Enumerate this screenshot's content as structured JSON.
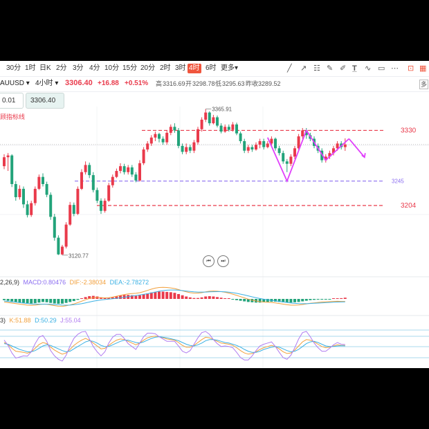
{
  "timeframes": [
    {
      "label": "30分",
      "active": false
    },
    {
      "label": "1时",
      "active": false
    },
    {
      "label": "日K",
      "active": false
    },
    {
      "label": "2分",
      "active": false
    },
    {
      "label": "3分",
      "active": false
    },
    {
      "label": "4分",
      "active": false
    },
    {
      "label": "10分",
      "active": false
    },
    {
      "label": "15分",
      "active": false
    },
    {
      "label": "20分",
      "active": false
    },
    {
      "label": "2时",
      "active": false
    },
    {
      "label": "3时",
      "active": false
    },
    {
      "label": "4时",
      "active": true
    },
    {
      "label": "6时",
      "active": false
    },
    {
      "label": "更多▾",
      "active": false
    }
  ],
  "tools": [
    "trend-line-icon",
    "ray-icon",
    "fib-icon",
    "pen-icon",
    "text-icon",
    "wave-icon",
    "rect-icon",
    "layout-icon",
    "theme-icon"
  ],
  "quote": {
    "symbol": "AUUSD ▾",
    "interval": "4小时 ▾",
    "price": "3306.40",
    "change": "+16.88",
    "change_pct": "+0.51%",
    "high_label": "高",
    "high": "3316.69",
    "open_label": "开",
    "open": "3298.78",
    "low_label": "低",
    "low": "3295.63",
    "prev_label": "昨收",
    "prev": "3289.52",
    "corner": "多"
  },
  "order": {
    "lots": "0.01",
    "price": "3306.40"
  },
  "indicator_link": "顾指标线",
  "macd_label": {
    "head": "2,26,9)",
    "macd": "MACD:0.80476",
    "dif": "DIF:-2.38034",
    "dea": "DEA:-2.78272"
  },
  "kdj_label": {
    "head": "3)",
    "k": "K:51.88",
    "d": "D:50.29",
    "j": "J:55.04"
  },
  "chart_data": {
    "type": "candlestick",
    "annotations": {
      "high": "3365.91",
      "low": "3120.77"
    },
    "levels": [
      {
        "value": 3330,
        "label": "3330",
        "color": "#e93a4b"
      },
      {
        "value": 3245,
        "label": "3245",
        "color": "#8a6cf0"
      },
      {
        "value": 3204,
        "label": "3204",
        "color": "#e93a4b"
      }
    ],
    "candles": [
      [
        3270,
        3285,
        3290,
        3265
      ],
      [
        3285,
        3288,
        3292,
        3262
      ],
      [
        3288,
        3240,
        3290,
        3235
      ],
      [
        3240,
        3218,
        3245,
        3212
      ],
      [
        3218,
        3232,
        3238,
        3214
      ],
      [
        3232,
        3206,
        3236,
        3200
      ],
      [
        3206,
        3188,
        3212,
        3184
      ],
      [
        3188,
        3208,
        3212,
        3185
      ],
      [
        3208,
        3232,
        3236,
        3204
      ],
      [
        3232,
        3252,
        3256,
        3230
      ],
      [
        3252,
        3240,
        3258,
        3236
      ],
      [
        3240,
        3222,
        3244,
        3218
      ],
      [
        3222,
        3185,
        3226,
        3180
      ],
      [
        3185,
        3150,
        3190,
        3145
      ],
      [
        3150,
        3122,
        3154,
        3121
      ],
      [
        3122,
        3135,
        3138,
        3120.77
      ],
      [
        3135,
        3172,
        3176,
        3132
      ],
      [
        3172,
        3205,
        3210,
        3170
      ],
      [
        3205,
        3190,
        3209,
        3186
      ],
      [
        3190,
        3232,
        3236,
        3188
      ],
      [
        3232,
        3260,
        3265,
        3230
      ],
      [
        3260,
        3272,
        3278,
        3256
      ],
      [
        3272,
        3255,
        3276,
        3250
      ],
      [
        3255,
        3230,
        3260,
        3226
      ],
      [
        3230,
        3212,
        3234,
        3208
      ],
      [
        3212,
        3195,
        3216,
        3190
      ],
      [
        3195,
        3212,
        3216,
        3192
      ],
      [
        3212,
        3238,
        3242,
        3210
      ],
      [
        3238,
        3252,
        3256,
        3234
      ],
      [
        3252,
        3262,
        3266,
        3250
      ],
      [
        3262,
        3270,
        3275,
        3258
      ],
      [
        3270,
        3260,
        3274,
        3256
      ],
      [
        3260,
        3268,
        3272,
        3256
      ],
      [
        3268,
        3256,
        3272,
        3252
      ],
      [
        3256,
        3246,
        3260,
        3243
      ],
      [
        3246,
        3275,
        3280,
        3244
      ],
      [
        3275,
        3298,
        3302,
        3272
      ],
      [
        3298,
        3308,
        3312,
        3294
      ],
      [
        3308,
        3318,
        3322,
        3304
      ],
      [
        3318,
        3324,
        3328,
        3312
      ],
      [
        3324,
        3316,
        3326,
        3310
      ],
      [
        3316,
        3310,
        3320,
        3306
      ],
      [
        3310,
        3326,
        3330,
        3306
      ],
      [
        3326,
        3336,
        3340,
        3322
      ],
      [
        3336,
        3330,
        3342,
        3326
      ],
      [
        3330,
        3304,
        3334,
        3300
      ],
      [
        3304,
        3294,
        3308,
        3290
      ],
      [
        3294,
        3302,
        3308,
        3290
      ],
      [
        3302,
        3296,
        3306,
        3292
      ],
      [
        3296,
        3310,
        3314,
        3292
      ],
      [
        3310,
        3332,
        3336,
        3306
      ],
      [
        3332,
        3348,
        3352,
        3328
      ],
      [
        3348,
        3360,
        3365.91,
        3344
      ],
      [
        3360,
        3342,
        3362,
        3338
      ],
      [
        3342,
        3352,
        3356,
        3340
      ],
      [
        3352,
        3338,
        3355,
        3335
      ],
      [
        3338,
        3328,
        3342,
        3325
      ],
      [
        3328,
        3336,
        3340,
        3326
      ],
      [
        3336,
        3331,
        3340,
        3328
      ],
      [
        3331,
        3340,
        3344,
        3328
      ],
      [
        3340,
        3325,
        3343,
        3322
      ],
      [
        3325,
        3312,
        3328,
        3308
      ],
      [
        3312,
        3296,
        3316,
        3292
      ],
      [
        3296,
        3302,
        3306,
        3292
      ],
      [
        3302,
        3298,
        3306,
        3294
      ],
      [
        3298,
        3306,
        3310,
        3296
      ],
      [
        3306,
        3312,
        3316,
        3300
      ],
      [
        3312,
        3302,
        3316,
        3298
      ],
      [
        3302,
        3308,
        3312,
        3300
      ],
      [
        3308,
        3316,
        3320,
        3304
      ],
      [
        3316,
        3300,
        3318,
        3296
      ],
      [
        3300,
        3292,
        3304,
        3288
      ],
      [
        3292,
        3278,
        3296,
        3274
      ],
      [
        3278,
        3274,
        3282,
        3260
      ],
      [
        3274,
        3286,
        3290,
        3270
      ],
      [
        3286,
        3300,
        3304,
        3282
      ],
      [
        3300,
        3320,
        3324,
        3296
      ],
      [
        3320,
        3330,
        3334,
        3316
      ],
      [
        3330,
        3322,
        3334,
        3316
      ],
      [
        3322,
        3316,
        3326,
        3312
      ],
      [
        3316,
        3304,
        3320,
        3300
      ],
      [
        3304,
        3296,
        3308,
        3292
      ],
      [
        3296,
        3280,
        3300,
        3276
      ],
      [
        3280,
        3286,
        3290,
        3276
      ],
      [
        3286,
        3292,
        3296,
        3282
      ],
      [
        3292,
        3300,
        3304,
        3288
      ],
      [
        3300,
        3308,
        3312,
        3296
      ],
      [
        3308,
        3302,
        3312,
        3298
      ],
      [
        3302,
        3306.4,
        3316.69,
        3295.63
      ]
    ],
    "macd_hist": [
      -0.8,
      -1.2,
      -1.6,
      -2.0,
      -2.3,
      -2.6,
      -2.8,
      -3.0,
      -2.8,
      -2.4,
      -2.0,
      -2.2,
      -2.6,
      -3.0,
      -3.2,
      -3.1,
      -2.6,
      -2.0,
      -1.4,
      -0.6,
      0.4,
      1.2,
      1.8,
      2.0,
      1.6,
      1.0,
      0.6,
      0.6,
      1.0,
      1.6,
      2.2,
      2.6,
      2.6,
      2.4,
      2.0,
      2.4,
      3.0,
      3.6,
      4.2,
      4.6,
      4.8,
      4.8,
      4.6,
      4.4,
      4.0,
      3.2,
      2.4,
      1.6,
      1.0,
      0.6,
      0.6,
      1.0,
      1.6,
      1.8,
      1.6,
      1.2,
      0.8,
      0.4,
      0.0,
      -0.4,
      -0.8,
      -1.2,
      -1.6,
      -2.0,
      -2.2,
      -2.4,
      -2.4,
      -2.2,
      -2.0,
      -1.8,
      -1.8,
      -2.0,
      -2.2,
      -2.4,
      -2.4,
      -2.2,
      -2.0,
      -1.6,
      -1.2,
      -0.8,
      -0.6,
      -0.4,
      -0.3,
      -0.2,
      -0.1,
      0.0,
      0.2,
      0.5,
      0.8
    ],
    "dif": [
      -3,
      -3.5,
      -4,
      -4.5,
      -5,
      -5.5,
      -6,
      -6.2,
      -6,
      -5.5,
      -5,
      -5.2,
      -5.8,
      -6.4,
      -7,
      -7.2,
      -6.6,
      -5.8,
      -4.8,
      -3.6,
      -2.2,
      -0.8,
      0.4,
      1.2,
      1.4,
      1.2,
      1.0,
      1.2,
      1.8,
      2.6,
      3.4,
      4.2,
      4.8,
      5.2,
      5.4,
      6.0,
      7.0,
      8.2,
      9.4,
      10.4,
      11.0,
      11.2,
      11.0,
      10.6,
      10.0,
      9.0,
      7.8,
      6.8,
      6.0,
      5.6,
      5.6,
      6.0,
      6.8,
      7.4,
      7.6,
      7.4,
      7.0,
      6.4,
      5.6,
      4.6,
      3.4,
      2.2,
      1.0,
      -0.2,
      -1.2,
      -2.0,
      -2.6,
      -3.0,
      -3.2,
      -3.4,
      -3.8,
      -4.4,
      -5.0,
      -5.6,
      -6.0,
      -6.0,
      -5.8,
      -5.4,
      -4.8,
      -4.2,
      -3.8,
      -3.4,
      -3.0,
      -2.8,
      -2.6,
      -2.4,
      -2.3,
      -2.38,
      -2.38
    ],
    "dea": [
      -2,
      -2.4,
      -2.8,
      -3.2,
      -3.6,
      -4,
      -4.4,
      -4.8,
      -5,
      -5.1,
      -5.1,
      -5.1,
      -5.2,
      -5.4,
      -5.6,
      -5.9,
      -6,
      -5.9,
      -5.6,
      -5.2,
      -4.6,
      -3.8,
      -3.0,
      -2.2,
      -1.6,
      -1.0,
      -0.6,
      -0.2,
      0.2,
      0.6,
      1.1,
      1.6,
      2.2,
      2.8,
      3.3,
      3.8,
      4.4,
      5.0,
      5.8,
      6.6,
      7.4,
      8.0,
      8.4,
      8.6,
      8.6,
      8.4,
      8.0,
      7.6,
      7.2,
      6.8,
      6.6,
      6.6,
      6.6,
      6.8,
      6.9,
      7.0,
      7.0,
      6.8,
      6.5,
      6.0,
      5.4,
      4.6,
      3.8,
      2.9,
      2.0,
      1.2,
      0.4,
      -0.3,
      -0.9,
      -1.4,
      -1.9,
      -2.4,
      -2.9,
      -3.4,
      -3.9,
      -4.3,
      -4.5,
      -4.6,
      -4.6,
      -4.4,
      -4.2,
      -4.0,
      -3.8,
      -3.6,
      -3.4,
      -3.2,
      -3.0,
      -2.9,
      -2.78
    ],
    "k": [
      62,
      55,
      42,
      32,
      30,
      28,
      25,
      30,
      42,
      55,
      62,
      58,
      46,
      36,
      28,
      22,
      26,
      38,
      52,
      62,
      70,
      76,
      70,
      60,
      50,
      40,
      42,
      52,
      62,
      70,
      74,
      72,
      66,
      60,
      54,
      60,
      70,
      78,
      82,
      84,
      82,
      78,
      74,
      72,
      70,
      62,
      52,
      46,
      46,
      52,
      62,
      72,
      80,
      78,
      72,
      66,
      60,
      58,
      56,
      52,
      44,
      34,
      26,
      22,
      24,
      30,
      38,
      44,
      48,
      52,
      48,
      40,
      30,
      24,
      26,
      36,
      50,
      64,
      72,
      70,
      64,
      56,
      48,
      44,
      46,
      50,
      54,
      52,
      51.88
    ],
    "d": [
      58,
      56,
      50,
      44,
      38,
      34,
      30,
      30,
      34,
      42,
      50,
      54,
      52,
      46,
      40,
      34,
      30,
      32,
      40,
      48,
      56,
      64,
      68,
      66,
      60,
      52,
      48,
      48,
      54,
      60,
      66,
      70,
      70,
      66,
      62,
      60,
      64,
      70,
      76,
      80,
      82,
      80,
      78,
      75,
      72,
      68,
      62,
      56,
      52,
      50,
      54,
      60,
      68,
      72,
      72,
      70,
      66,
      62,
      60,
      56,
      52,
      46,
      38,
      32,
      28,
      28,
      32,
      38,
      42,
      46,
      48,
      46,
      40,
      34,
      30,
      32,
      38,
      48,
      58,
      64,
      66,
      62,
      56,
      50,
      48,
      48,
      50,
      51,
      50.29
    ],
    "j": [
      70,
      52,
      26,
      8,
      12,
      16,
      15,
      30,
      58,
      80,
      86,
      66,
      34,
      16,
      4,
      -2,
      18,
      50,
      76,
      90,
      98,
      100,
      74,
      48,
      30,
      16,
      30,
      60,
      80,
      90,
      90,
      76,
      58,
      48,
      38,
      60,
      82,
      94,
      94,
      92,
      82,
      74,
      66,
      66,
      66,
      50,
      32,
      26,
      34,
      56,
      78,
      96,
      100,
      90,
      72,
      58,
      48,
      50,
      48,
      44,
      28,
      10,
      2,
      2,
      16,
      34,
      50,
      56,
      60,
      64,
      48,
      28,
      10,
      4,
      18,
      44,
      74,
      96,
      100,
      82,
      60,
      44,
      32,
      32,
      42,
      54,
      62,
      56,
      55.04
    ]
  }
}
